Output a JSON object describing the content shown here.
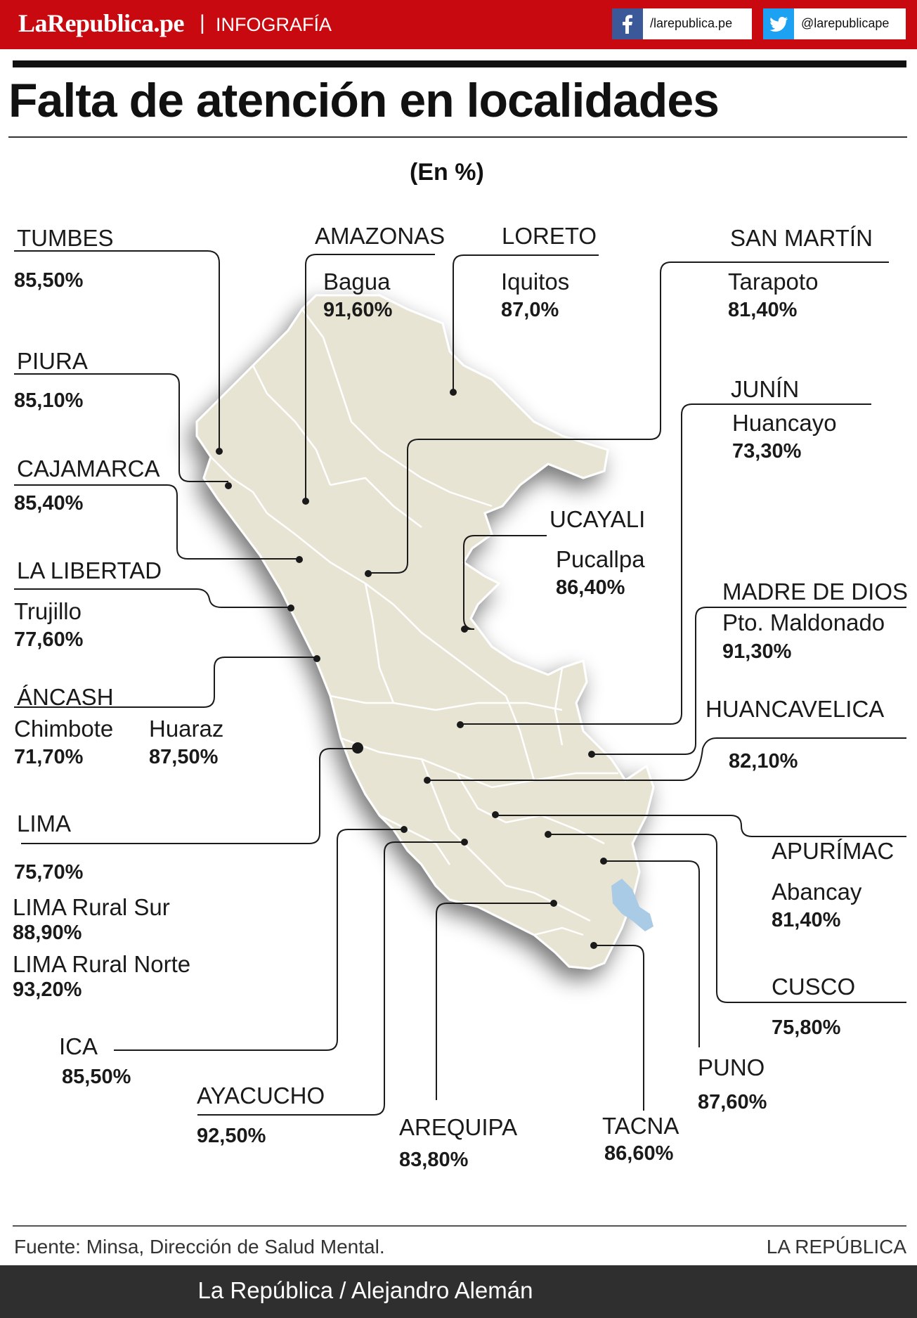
{
  "header": {
    "brand": "LaRepublica.pe",
    "separator": "|",
    "section": "INFOGRAFÍA",
    "facebook": "/larepublica.pe",
    "twitter": "@larepublicape",
    "facebook_color": "#3b5998",
    "twitter_color": "#1da1f2",
    "bar_color": "#c8090f"
  },
  "title": "Falta de atención en localidades",
  "subtitle": "(En %)",
  "map": {
    "land_color": "#e8e4d4",
    "lake_color": "#a9cbe6",
    "regions": [
      {
        "region": "TUMBES",
        "city": "",
        "value": "85,50%"
      },
      {
        "region": "PIURA",
        "city": "",
        "value": "85,10%"
      },
      {
        "region": "CAJAMARCA",
        "city": "",
        "value": "85,40%"
      },
      {
        "region": "LA LIBERTAD",
        "city": "Trujillo",
        "value": "77,60%"
      },
      {
        "region": "ÁNCASH",
        "city": "Chimbote",
        "value": "71,70%",
        "city2": "Huaraz",
        "value2": "87,50%"
      },
      {
        "region": "LIMA",
        "city": "",
        "value": "75,70%",
        "city2": "LIMA Rural Sur",
        "value2": "88,90%",
        "city3": "LIMA Rural Norte",
        "value3": "93,20%"
      },
      {
        "region": "ICA",
        "city": "",
        "value": "85,50%"
      },
      {
        "region": "AYACUCHO",
        "city": "",
        "value": "92,50%"
      },
      {
        "region": "AREQUIPA",
        "city": "",
        "value": "83,80%"
      },
      {
        "region": "TACNA",
        "city": "",
        "value": "86,60%"
      },
      {
        "region": "PUNO",
        "city": "",
        "value": "87,60%"
      },
      {
        "region": "CUSCO",
        "city": "",
        "value": "75,80%"
      },
      {
        "region": "APURÍMAC",
        "city": "Abancay",
        "value": "81,40%"
      },
      {
        "region": "HUANCAVELICA",
        "city": "",
        "value": "82,10%"
      },
      {
        "region": "MADRE DE DIOS",
        "city": "Pto. Maldonado",
        "value": "91,30%"
      },
      {
        "region": "UCAYALI",
        "city": "Pucallpa",
        "value": "86,40%"
      },
      {
        "region": "JUNÍN",
        "city": "Huancayo",
        "value": "73,30%"
      },
      {
        "region": "SAN MARTÍN",
        "city": "Tarapoto",
        "value": "81,40%"
      },
      {
        "region": "LORETO",
        "city": "Iquitos",
        "value": "87,0%"
      },
      {
        "region": "AMAZONAS",
        "city": "Bagua",
        "value": "91,60%"
      }
    ]
  },
  "footer": {
    "source": "Fuente: Minsa, Dirección de Salud Mental.",
    "brand": "LA REPÚBLICA",
    "credit": "La República / Alejandro Alemán"
  }
}
